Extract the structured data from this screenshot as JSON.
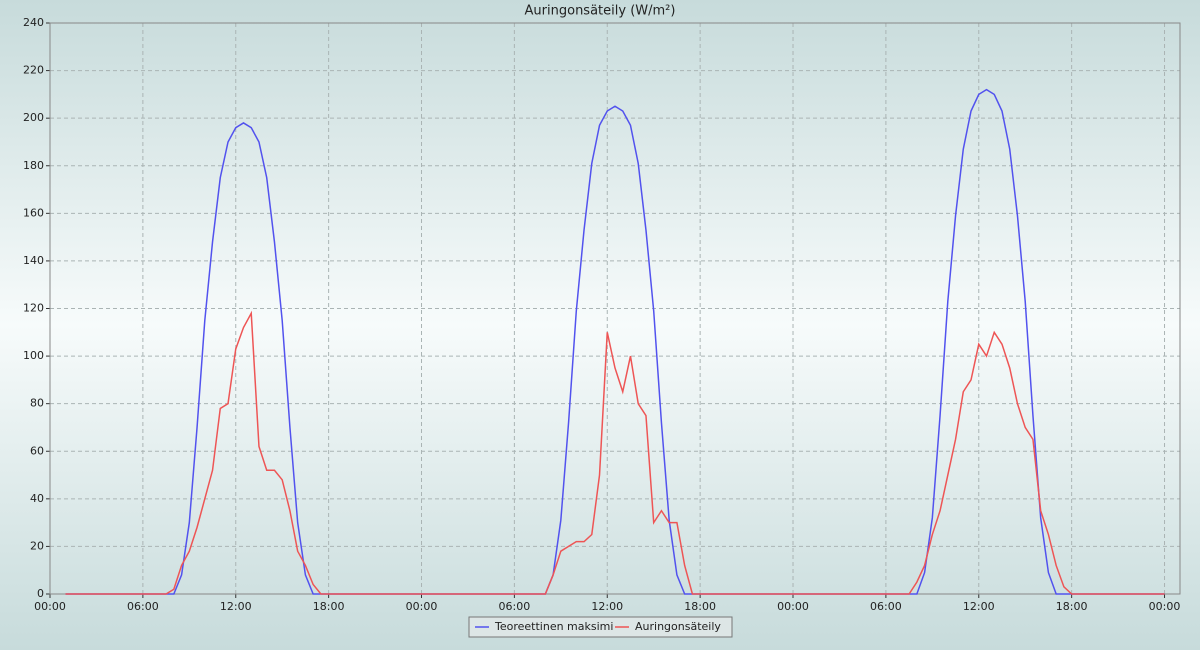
{
  "chart_data": {
    "type": "line",
    "title": "Auringonsäteily (W/m²)",
    "x": [
      1,
      2,
      3,
      4,
      5,
      6,
      7,
      7.5,
      8,
      8.5,
      9,
      9.5,
      10,
      10.5,
      11,
      11.5,
      12,
      12.5,
      13,
      13.5,
      14,
      14.5,
      15,
      15.5,
      16,
      16.5,
      17,
      17.5,
      18,
      19,
      20,
      21,
      22,
      23,
      24,
      25,
      26,
      27,
      28,
      29,
      30,
      31,
      31.5,
      32,
      32.5,
      33,
      33.5,
      34,
      34.5,
      35,
      35.5,
      36,
      36.5,
      37,
      37.5,
      38,
      38.5,
      39,
      39.5,
      40,
      40.5,
      41,
      41.5,
      42,
      43,
      44,
      45,
      46,
      47,
      48,
      49,
      50,
      51,
      52,
      53,
      54,
      55,
      55.5,
      56,
      56.5,
      57,
      57.5,
      58,
      58.5,
      59,
      59.5,
      60,
      60.5,
      61,
      61.5,
      62,
      62.5,
      63,
      63.5,
      64,
      64.5,
      65,
      65.5,
      66,
      67,
      68,
      69,
      70,
      71,
      72
    ],
    "series": [
      {
        "name": "Teoreettinen maksimi",
        "color": "#5252ee",
        "values": [
          0,
          0,
          0,
          0,
          0,
          0,
          0,
          0,
          0,
          8,
          30,
          70,
          115,
          148,
          175,
          190,
          196,
          198,
          196,
          190,
          175,
          148,
          115,
          70,
          30,
          8,
          0,
          0,
          0,
          0,
          0,
          0,
          0,
          0,
          0,
          0,
          0,
          0,
          0,
          0,
          0,
          0,
          0,
          0,
          8,
          31,
          72,
          119,
          153,
          181,
          197,
          203,
          205,
          203,
          197,
          181,
          153,
          119,
          72,
          31,
          8,
          0,
          0,
          0,
          0,
          0,
          0,
          0,
          0,
          0,
          0,
          0,
          0,
          0,
          0,
          0,
          0,
          0,
          0,
          9,
          32,
          75,
          123,
          159,
          187,
          203,
          210,
          212,
          210,
          203,
          187,
          159,
          123,
          75,
          32,
          9,
          0,
          0,
          0,
          0,
          0,
          0,
          0,
          0,
          0
        ]
      },
      {
        "name": "Auringonsäteily",
        "color": "#ee5555",
        "values": [
          0,
          0,
          0,
          0,
          0,
          0,
          0,
          0,
          2,
          12,
          18,
          28,
          40,
          52,
          78,
          80,
          103,
          112,
          118,
          62,
          52,
          52,
          48,
          35,
          18,
          12,
          4,
          0,
          0,
          0,
          0,
          0,
          0,
          0,
          0,
          0,
          0,
          0,
          0,
          0,
          0,
          0,
          0,
          0,
          8,
          18,
          20,
          22,
          22,
          25,
          50,
          110,
          95,
          85,
          100,
          80,
          75,
          30,
          35,
          30,
          30,
          12,
          0,
          0,
          0,
          0,
          0,
          0,
          0,
          0,
          0,
          0,
          0,
          0,
          0,
          0,
          0,
          0,
          5,
          12,
          25,
          35,
          50,
          65,
          85,
          90,
          105,
          100,
          110,
          105,
          95,
          80,
          70,
          65,
          35,
          25,
          12,
          3,
          0,
          0,
          0,
          0,
          0,
          0,
          0
        ]
      }
    ],
    "xlim": [
      0,
      73
    ],
    "xticks": [
      {
        "value": 0,
        "label": "00:00"
      },
      {
        "value": 6,
        "label": "06:00"
      },
      {
        "value": 12,
        "label": "12:00"
      },
      {
        "value": 18,
        "label": "18:00"
      },
      {
        "value": 24,
        "label": "00:00"
      },
      {
        "value": 30,
        "label": "06:00"
      },
      {
        "value": 36,
        "label": "12:00"
      },
      {
        "value": 42,
        "label": "18:00"
      },
      {
        "value": 48,
        "label": "00:00"
      },
      {
        "value": 54,
        "label": "06:00"
      },
      {
        "value": 60,
        "label": "12:00"
      },
      {
        "value": 66,
        "label": "18:00"
      },
      {
        "value": 72,
        "label": "00:00"
      }
    ],
    "ylim": [
      0,
      240
    ],
    "yticks": [
      0,
      20,
      40,
      60,
      80,
      100,
      120,
      140,
      160,
      180,
      200,
      220,
      240
    ],
    "grid": true,
    "legend": "bottom"
  }
}
